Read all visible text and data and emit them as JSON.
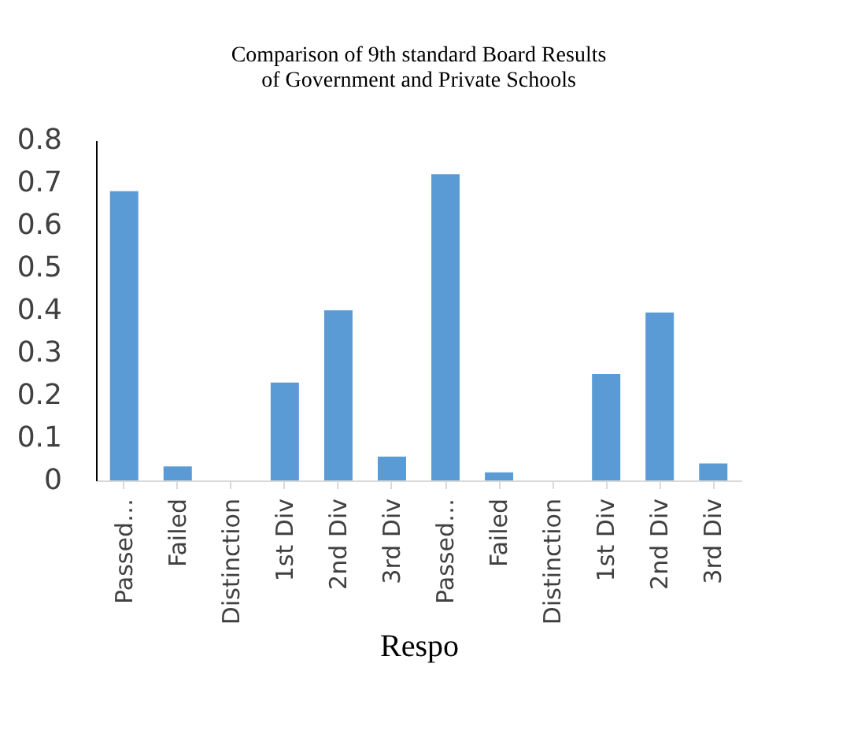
{
  "chart_data": {
    "type": "bar",
    "title": [
      "Comparison of 9th standard Board Results",
      "of Government and Private Schools"
    ],
    "xlabel": "Respo",
    "categories": [
      "Passed…",
      "Failed",
      "Distinction",
      "1st Div",
      "2nd Div",
      "3rd Div",
      "Passed…",
      "Failed",
      "Distinction",
      "1st Div",
      "2nd Div",
      "3rd Div"
    ],
    "values": [
      0.68,
      0.033,
      0,
      0.23,
      0.4,
      0.056,
      0.72,
      0.019,
      0,
      0.25,
      0.395,
      0.04
    ],
    "color": "#5b9bd5",
    "ylim": [
      0,
      0.8
    ],
    "yticks": [
      0,
      0.1,
      0.2,
      0.3,
      0.4,
      0.5,
      0.6,
      0.7,
      0.8
    ],
    "grid": false
  }
}
